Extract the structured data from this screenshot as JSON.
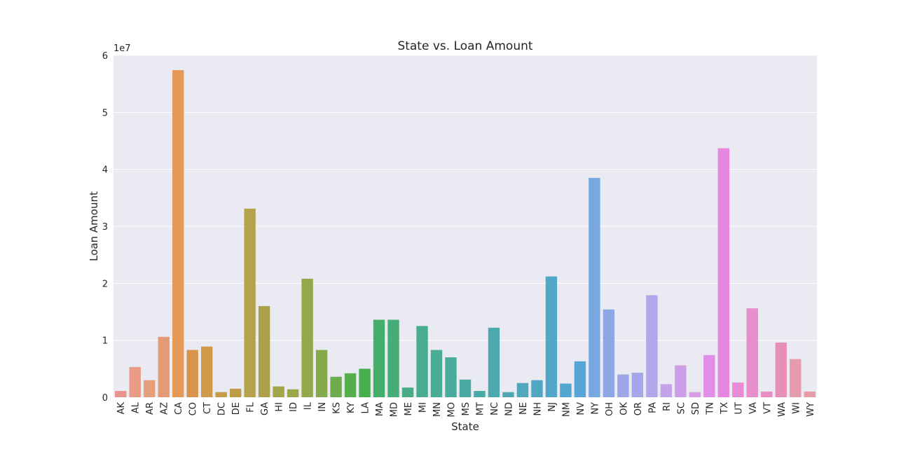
{
  "chart_data": {
    "type": "bar",
    "title": "State vs. Loan Amount",
    "xlabel": "State",
    "ylabel": "Loan Amount",
    "y_offset_label": "1e7",
    "ylim": [
      0,
      60000000
    ],
    "y_tick_values": [
      0,
      10000000,
      20000000,
      30000000,
      40000000,
      50000000,
      60000000
    ],
    "y_tick_labels": [
      "0",
      "1",
      "2",
      "3",
      "4",
      "5",
      "6"
    ],
    "grid": true,
    "background_color": "#eaeaf2",
    "categories": [
      "AK",
      "AL",
      "AR",
      "AZ",
      "CA",
      "CO",
      "CT",
      "DC",
      "DE",
      "FL",
      "GA",
      "HI",
      "ID",
      "IL",
      "IN",
      "KS",
      "KY",
      "LA",
      "MA",
      "MD",
      "ME",
      "MI",
      "MN",
      "MO",
      "MS",
      "MT",
      "NC",
      "ND",
      "NE",
      "NH",
      "NJ",
      "NM",
      "NV",
      "NY",
      "OH",
      "OK",
      "OR",
      "PA",
      "RI",
      "SC",
      "SD",
      "TN",
      "TX",
      "UT",
      "VA",
      "VT",
      "WA",
      "WI",
      "WY"
    ],
    "values": [
      1100000,
      5300000,
      3000000,
      10600000,
      57400000,
      8300000,
      8900000,
      900000,
      1500000,
      33100000,
      16000000,
      1900000,
      1400000,
      20800000,
      8300000,
      3600000,
      4200000,
      5000000,
      13600000,
      13600000,
      1700000,
      12500000,
      8300000,
      7000000,
      3100000,
      1100000,
      12200000,
      900000,
      2500000,
      3000000,
      21200000,
      2400000,
      6300000,
      38500000,
      15400000,
      4000000,
      4300000,
      17900000,
      2300000,
      5600000,
      900000,
      7400000,
      43700000,
      2600000,
      15600000,
      1000000,
      9600000,
      6700000,
      1000000
    ],
    "colors": [
      "#e8938c",
      "#e89a85",
      "#e5a07b",
      "#e49a72",
      "#e69856",
      "#d8944c",
      "#ce9a49",
      "#c49b48",
      "#bf9d47",
      "#b5a24c",
      "#ab9f48",
      "#a4a549",
      "#9da74a",
      "#94a84a",
      "#85a94a",
      "#6fad4c",
      "#55ae4c",
      "#47ae4e",
      "#45ae6a",
      "#46ad78",
      "#48ad86",
      "#48ad8e",
      "#49ac95",
      "#49ab9c",
      "#4aaaa2",
      "#4ba9a8",
      "#4da9ae",
      "#4ea8b4",
      "#4fa8bb",
      "#51a7c2",
      "#52a6c8",
      "#54a5cf",
      "#57a4d7",
      "#77a8e1",
      "#8fa6e6",
      "#9ea6e9",
      "#a6a7eb",
      "#b3a6ea",
      "#c3a3e9",
      "#cd9ee8",
      "#d79be8",
      "#e18ee8",
      "#e686df",
      "#e98ad6",
      "#e88ecc",
      "#e88dc2",
      "#e88fb8",
      "#e89aae",
      "#e89aa6"
    ]
  }
}
